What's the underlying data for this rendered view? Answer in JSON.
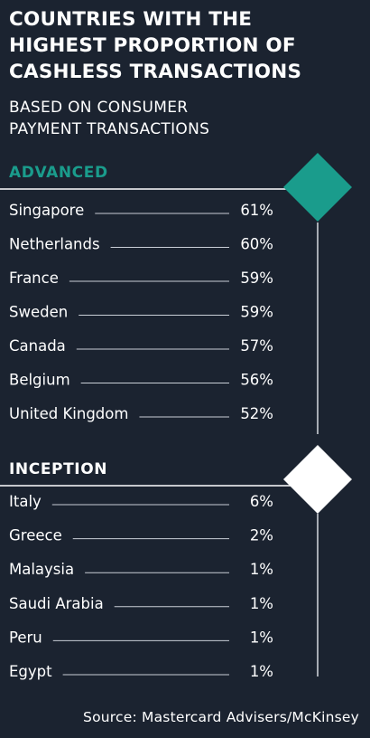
{
  "chart_data": {
    "type": "table",
    "title": "COUNTRIES WITH THE\nHIGHEST PROPORTION OF\nCASHLESS TRANSACTIONS",
    "subtitle": "BASED ON CONSUMER\nPAYMENT TRANSACTIONS",
    "groups": [
      {
        "name": "ADVANCED",
        "categories": [
          "Singapore",
          "Netherlands",
          "France",
          "Sweden",
          "Canada",
          "Belgium",
          "United Kingdom"
        ],
        "values": [
          61,
          60,
          59,
          59,
          57,
          56,
          52
        ],
        "labels": [
          "61%",
          "60%",
          "59%",
          "59%",
          "57%",
          "56%",
          "52%"
        ]
      },
      {
        "name": "INCEPTION",
        "categories": [
          "Italy",
          "Greece",
          "Malaysia",
          "Saudi Arabia",
          "Peru",
          "Egypt"
        ],
        "values": [
          6,
          2,
          1,
          1,
          1,
          1
        ],
        "labels": [
          "6%",
          "2%",
          "1%",
          "1%",
          "1%",
          "1%"
        ]
      }
    ],
    "unit": "%"
  },
  "source": "Source: Mastercard Advisers/McKinsey",
  "colors": {
    "background": "#1b2330",
    "advanced_accent": "#1a9c8c",
    "inception_accent": "#ffffff",
    "text": "#ffffff",
    "leader_line": "#c9ced6"
  }
}
